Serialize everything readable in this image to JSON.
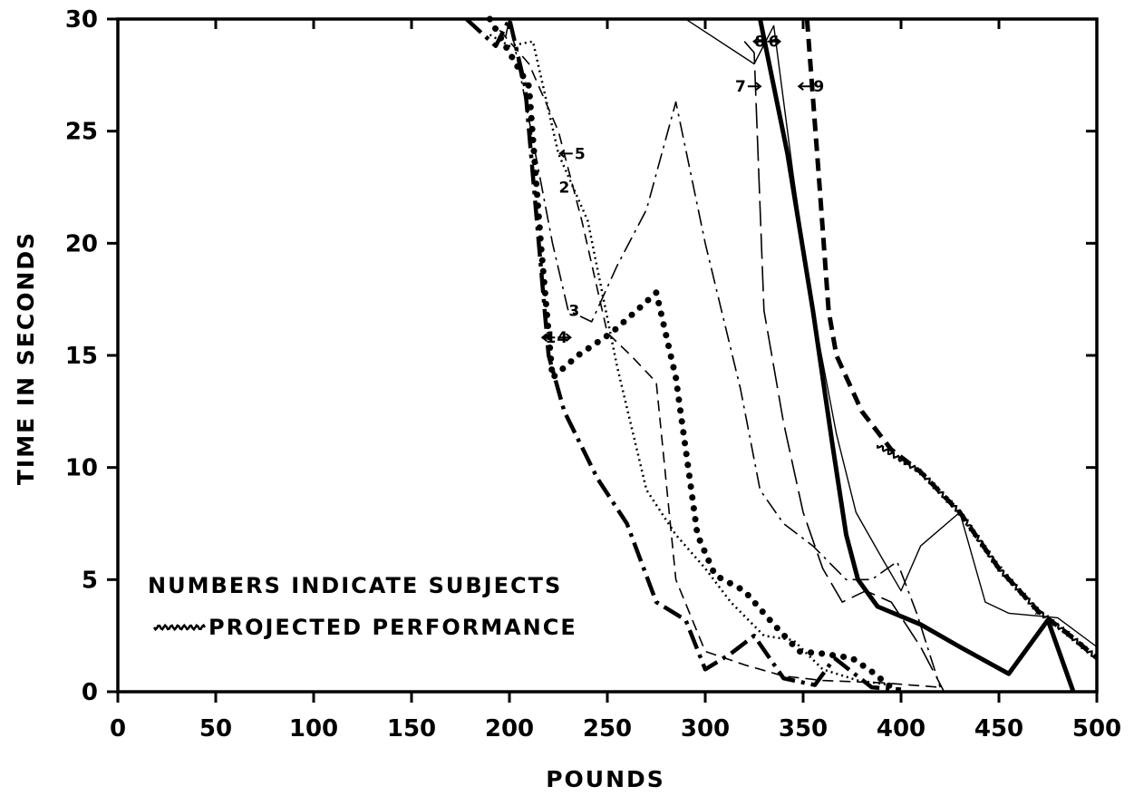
{
  "chart_data": {
    "type": "line",
    "title": "",
    "xlabel": "POUNDS",
    "ylabel": "TIME IN SECONDS",
    "xlim": [
      0,
      500
    ],
    "ylim": [
      0,
      30
    ],
    "x_ticks": [
      0,
      50,
      100,
      150,
      200,
      250,
      300,
      350,
      400,
      450,
      500
    ],
    "y_ticks": [
      0,
      5,
      10,
      15,
      20,
      25,
      30
    ],
    "grid": false,
    "legend": {
      "placement": "bottom-left",
      "entries": [
        "NUMBERS INDICATE SUBJECTS",
        "PROJECTED PERFORMANCE"
      ]
    },
    "series": [
      {
        "subject": "1",
        "style": "heavy-dash-dot",
        "color": "#000000",
        "points": [
          [
            178,
            30
          ],
          [
            193,
            28.8
          ],
          [
            200,
            30
          ],
          [
            208,
            27
          ],
          [
            215,
            20
          ],
          [
            220,
            15
          ],
          [
            228,
            12.5
          ],
          [
            245,
            9.5
          ],
          [
            260,
            7.5
          ],
          [
            275,
            4
          ],
          [
            290,
            3.2
          ],
          [
            300,
            1
          ],
          [
            313,
            1.7
          ],
          [
            325,
            2.5
          ],
          [
            340,
            0.6
          ],
          [
            356,
            0.3
          ],
          [
            366,
            1.5
          ],
          [
            385,
            0.2
          ],
          [
            400,
            0.1
          ]
        ]
      },
      {
        "subject": "2",
        "style": "dotted",
        "color": "#000000",
        "points": [
          [
            190,
            29.3
          ],
          [
            200,
            28.8
          ],
          [
            212,
            29
          ],
          [
            225,
            24
          ],
          [
            240,
            21
          ],
          [
            255,
            14.5
          ],
          [
            270,
            9
          ],
          [
            285,
            7
          ],
          [
            300,
            5.5
          ],
          [
            313,
            4
          ],
          [
            330,
            2.5
          ],
          [
            345,
            2.3
          ],
          [
            360,
            1
          ],
          [
            378,
            0.5
          ],
          [
            395,
            0.3
          ]
        ]
      },
      {
        "subject": "3",
        "style": "dash-dot",
        "color": "#000000",
        "points": [
          [
            198,
            29.2
          ],
          [
            200,
            30
          ],
          [
            210,
            25.5
          ],
          [
            222,
            20
          ],
          [
            230,
            17
          ],
          [
            242,
            16.5
          ],
          [
            255,
            19
          ],
          [
            270,
            21.5
          ],
          [
            285,
            26.3
          ],
          [
            300,
            20
          ],
          [
            318,
            13.5
          ],
          [
            328,
            9
          ],
          [
            340,
            7.5
          ],
          [
            355,
            6.5
          ],
          [
            372,
            5
          ],
          [
            385,
            5
          ],
          [
            398,
            5.8
          ],
          [
            408,
            3.5
          ],
          [
            420,
            0.2
          ]
        ]
      },
      {
        "subject": "4",
        "style": "heavy-dotted",
        "color": "#000000",
        "points": [
          [
            190,
            30
          ],
          [
            200,
            28.5
          ],
          [
            210,
            27
          ],
          [
            216,
            20
          ],
          [
            222,
            14
          ],
          [
            235,
            15
          ],
          [
            252,
            16
          ],
          [
            265,
            17
          ],
          [
            275,
            17.8
          ],
          [
            285,
            14
          ],
          [
            296,
            7
          ],
          [
            305,
            5.2
          ],
          [
            320,
            4.5
          ],
          [
            335,
            3
          ],
          [
            348,
            1.8
          ],
          [
            360,
            1.7
          ],
          [
            375,
            1.5
          ],
          [
            385,
            0.9
          ],
          [
            395,
            0.2
          ]
        ]
      },
      {
        "subject": "5",
        "style": "dashed",
        "color": "#000000",
        "points": [
          [
            195,
            29.5
          ],
          [
            210,
            28
          ],
          [
            225,
            25
          ],
          [
            237,
            21
          ],
          [
            250,
            16
          ],
          [
            262,
            15
          ],
          [
            275,
            13.8
          ],
          [
            285,
            5
          ],
          [
            300,
            1.8
          ],
          [
            320,
            1.2
          ],
          [
            340,
            0.7
          ],
          [
            360,
            0.5
          ],
          [
            390,
            0.4
          ],
          [
            420,
            0.2
          ]
        ]
      },
      {
        "subject": "6",
        "style": "heavy-solid",
        "color": "#000000",
        "points": [
          [
            328,
            30
          ],
          [
            342,
            24
          ],
          [
            355,
            17
          ],
          [
            365,
            11
          ],
          [
            372,
            7
          ],
          [
            378,
            5
          ],
          [
            388,
            3.8
          ],
          [
            410,
            3
          ],
          [
            430,
            2
          ],
          [
            455,
            0.8
          ],
          [
            475,
            3.2
          ],
          [
            488,
            0
          ]
        ]
      },
      {
        "subject": "7",
        "style": "long-dash",
        "color": "#000000",
        "points": [
          [
            320,
            29
          ],
          [
            325,
            28.5
          ],
          [
            330,
            17
          ],
          [
            340,
            12
          ],
          [
            350,
            8
          ],
          [
            360,
            5.5
          ],
          [
            370,
            4
          ],
          [
            382,
            4.5
          ],
          [
            395,
            4
          ],
          [
            410,
            2
          ],
          [
            422,
            0
          ]
        ]
      },
      {
        "subject": "8",
        "style": "thin-solid",
        "color": "#000000",
        "points": [
          [
            290,
            30
          ],
          [
            325,
            28
          ],
          [
            335,
            29.7
          ],
          [
            345,
            23
          ],
          [
            355,
            17
          ],
          [
            367,
            11.5
          ],
          [
            377,
            8
          ],
          [
            390,
            6
          ],
          [
            400,
            4.5
          ],
          [
            410,
            6.5
          ],
          [
            430,
            8
          ],
          [
            443,
            4
          ],
          [
            455,
            3.5
          ],
          [
            480,
            3.3
          ],
          [
            500,
            2
          ]
        ]
      },
      {
        "subject": "9",
        "style": "heavy-dashed",
        "color": "#000000",
        "points": [
          [
            352,
            30
          ],
          [
            358,
            23
          ],
          [
            363,
            17
          ],
          [
            367,
            15
          ],
          [
            380,
            12.5
          ],
          [
            395,
            10.8
          ],
          [
            410,
            9.8
          ],
          [
            430,
            8
          ],
          [
            450,
            5.5
          ],
          [
            470,
            3.6
          ],
          [
            485,
            2.6
          ],
          [
            500,
            1.5
          ]
        ]
      }
    ],
    "projected_performance": {
      "label": "PROJECTED PERFORMANCE",
      "style": "wavy",
      "points": [
        [
          388,
          11
        ],
        [
          410,
          9.8
        ],
        [
          430,
          8
        ],
        [
          450,
          5.5
        ],
        [
          470,
          3.6
        ],
        [
          485,
          2.6
        ],
        [
          500,
          1.5
        ]
      ]
    },
    "subject_labels": [
      {
        "text": "1",
        "arrow": "right",
        "x": 221,
        "y": 15.8
      },
      {
        "text": "2",
        "arrow": "none",
        "x": 228,
        "y": 22.5
      },
      {
        "text": "3",
        "arrow": "none",
        "x": 233,
        "y": 17
      },
      {
        "text": "4",
        "arrow": "left",
        "x": 227,
        "y": 15.8
      },
      {
        "text": "5",
        "arrow": "left",
        "x": 236,
        "y": 24
      },
      {
        "text": "6",
        "arrow": "left",
        "x": 335,
        "y": 29
      },
      {
        "text": "7",
        "arrow": "right",
        "x": 318,
        "y": 27
      },
      {
        "text": "8",
        "arrow": "right",
        "x": 328,
        "y": 29
      },
      {
        "text": "9",
        "arrow": "left",
        "x": 358,
        "y": 27
      }
    ]
  }
}
